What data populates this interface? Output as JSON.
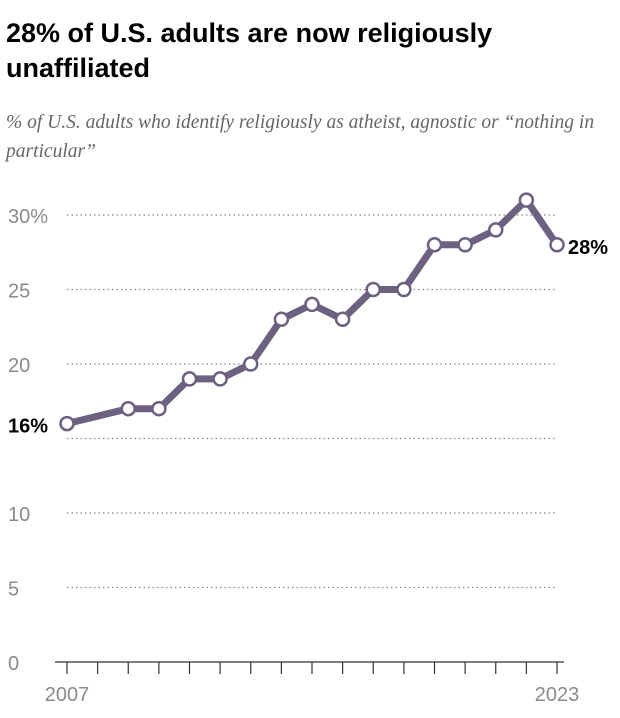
{
  "chart_data": {
    "type": "line",
    "title": "28% of U.S. adults are now religiously unaffiliated",
    "subtitle": "% of U.S. adults who identify religiously as atheist, agnostic or “nothing in particular”",
    "xlabel": "",
    "ylabel": "",
    "x": [
      2007,
      2009,
      2010,
      2011,
      2012,
      2013,
      2014,
      2015,
      2016,
      2017,
      2018,
      2019,
      2020,
      2021,
      2022,
      2023
    ],
    "values": [
      16,
      17,
      17,
      19,
      19,
      20,
      23,
      24,
      23,
      25,
      25,
      28,
      28,
      29,
      31,
      28
    ],
    "xlim": [
      2007,
      2023
    ],
    "ylim": [
      0,
      30
    ],
    "yticks": [
      0,
      5,
      10,
      15,
      20,
      25,
      30
    ],
    "ytick_labels": [
      "0",
      "5",
      "10",
      "",
      "20",
      "25",
      "30%"
    ],
    "xtick_labels": [
      "2007",
      "2023"
    ],
    "data_labels": {
      "first": "16%",
      "last": "28%"
    },
    "grid": "horizontal dotted",
    "line_color": "#6d6080"
  }
}
